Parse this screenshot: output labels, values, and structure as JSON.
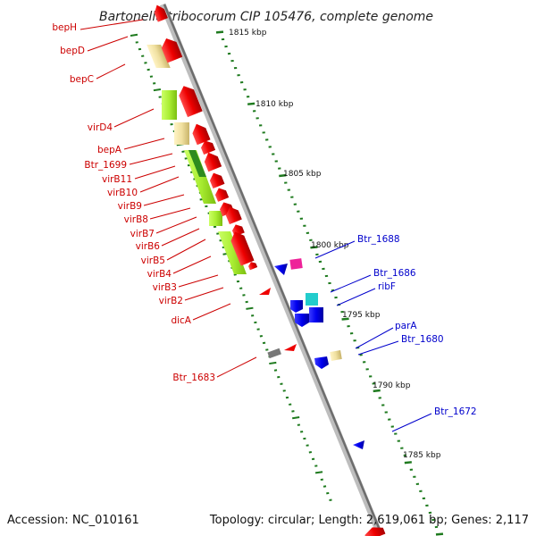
{
  "header": {
    "title": "Bartonella tribocorum CIP 105476, complete genome"
  },
  "footer": {
    "accession": "Accession: NC_010161",
    "summary": "Topology: circular; Length: 2,619,061 bp; Genes: 2,117"
  },
  "scale": {
    "ticks": [
      "1815 kbp",
      "1810 kbp",
      "1805 kbp",
      "1800 kbp",
      "1795 kbp",
      "1790 kbp",
      "1785 kbp"
    ]
  },
  "labels_left": [
    "bepH",
    "bepD",
    "bepC",
    "virD4",
    "bepA",
    "Btr_1699",
    "virB11",
    "virB10",
    "virB9",
    "virB8",
    "virB7",
    "virB6",
    "virB5",
    "virB4",
    "virB3",
    "virB2",
    "dicA",
    "Btr_1683"
  ],
  "labels_right": [
    "Btr_1688",
    "Btr_1686",
    "ribF",
    "parA",
    "Btr_1680",
    "Btr_1672"
  ],
  "colors": {
    "backbone": "#8a8a8a",
    "tick": "#1e7a1e",
    "gene_red": "#ee0000",
    "gene_blue": "#0000ee",
    "gene_yellow": "#f0e0a0",
    "gene_lime": "#aaee33",
    "gene_cyan": "#22cccc",
    "gene_magenta": "#ee2299",
    "label_red": "#cc0000",
    "label_blue": "#0000cc"
  }
}
